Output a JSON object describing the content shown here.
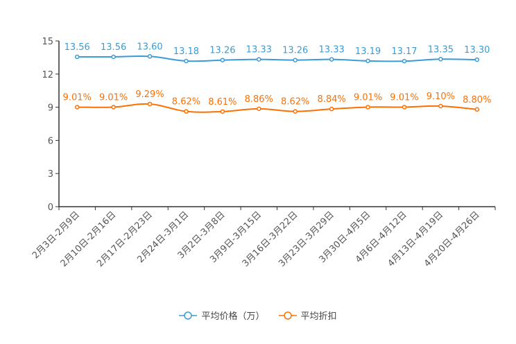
{
  "chart_data": {
    "type": "line",
    "categories": [
      "2月3日-2月9日",
      "2月10日-2月16日",
      "2月17日-2月23日",
      "2月24日-3月1日",
      "3月2日-3月8日",
      "3月9日-3月15日",
      "3月16日-3月22日",
      "3月23日-3月29日",
      "3月30日-4月5日",
      "4月6日-4月12日",
      "4月13日-4月19日",
      "4月20日-4月26日"
    ],
    "ylim": [
      0,
      15
    ],
    "yticks": [
      "0",
      "3",
      "6",
      "9",
      "12",
      "15"
    ],
    "series": [
      {
        "name": "平均价格（万）",
        "color": "#3a9bd5",
        "values": [
          13.56,
          13.56,
          13.6,
          13.18,
          13.26,
          13.33,
          13.26,
          13.33,
          13.19,
          13.17,
          13.35,
          13.3
        ],
        "labels": [
          "13.56",
          "13.56",
          "13.60",
          "13.18",
          "13.26",
          "13.33",
          "13.26",
          "13.33",
          "13.19",
          "13.17",
          "13.35",
          "13.30"
        ]
      },
      {
        "name": "平均折扣",
        "color": "#ff6f00",
        "values": [
          9.01,
          9.01,
          9.29,
          8.62,
          8.61,
          8.86,
          8.62,
          8.84,
          9.01,
          9.01,
          9.1,
          8.8
        ],
        "labels": [
          "9.01%",
          "9.01%",
          "9.29%",
          "8.62%",
          "8.61%",
          "8.86%",
          "8.62%",
          "8.84%",
          "9.01%",
          "9.01%",
          "9.10%",
          "8.80%"
        ]
      }
    ],
    "legend_position": "bottom-center",
    "grid": false
  }
}
